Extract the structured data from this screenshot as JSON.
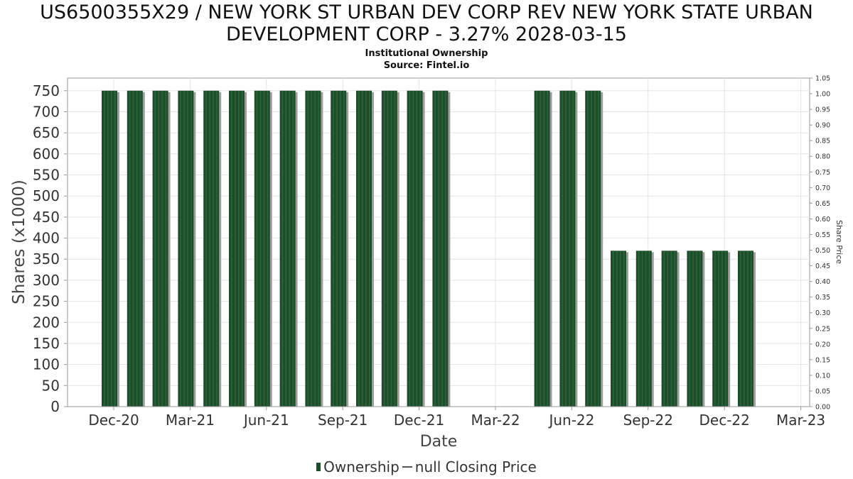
{
  "chart_data": {
    "type": "bar",
    "title": "US6500355X29 / NEW YORK ST URBAN DEV CORP REV NEW YORK STATE URBAN DEVELOPMENT CORP - 3.27% 2028-03-15",
    "title_line1": "US6500355X29 / NEW YORK ST URBAN DEV CORP REV NEW YORK STATE URBAN",
    "title_line2": "DEVELOPMENT CORP - 3.27% 2028-03-15",
    "subtitle": "Institutional Ownership",
    "source": "Source: Fintel.io",
    "xlabel": "Date",
    "ylabel": "Shares (x1000)",
    "y2label": "Share Price",
    "x_ticks": [
      "Dec-20",
      "Mar-21",
      "Jun-21",
      "Sep-21",
      "Dec-21",
      "Mar-22",
      "Jun-22",
      "Sep-22",
      "Dec-22",
      "Mar-23"
    ],
    "ylim": [
      0,
      780
    ],
    "y_ticks": [
      0,
      50,
      100,
      150,
      200,
      250,
      300,
      350,
      400,
      450,
      500,
      550,
      600,
      650,
      700,
      750
    ],
    "y2lim": [
      0,
      1.05
    ],
    "y2_ticks": [
      "0.00",
      "0.05",
      "0.10",
      "0.15",
      "0.20",
      "0.25",
      "0.30",
      "0.35",
      "0.40",
      "0.45",
      "0.50",
      "0.55",
      "0.60",
      "0.65",
      "0.70",
      "0.75",
      "0.80",
      "0.85",
      "0.90",
      "0.95",
      "1.00",
      "1.05"
    ],
    "series": [
      {
        "name": "Ownership",
        "color": "#1e4d2b",
        "values": [
          750,
          750,
          750,
          750,
          750,
          750,
          750,
          750,
          750,
          750,
          750,
          750,
          750,
          750,
          0,
          0,
          0,
          750,
          750,
          750,
          370,
          370,
          370,
          370,
          370,
          370
        ]
      }
    ],
    "legend": {
      "placement": "bottom-center",
      "entries": [
        "Ownership",
        "null Closing Price"
      ]
    },
    "grid": true
  }
}
